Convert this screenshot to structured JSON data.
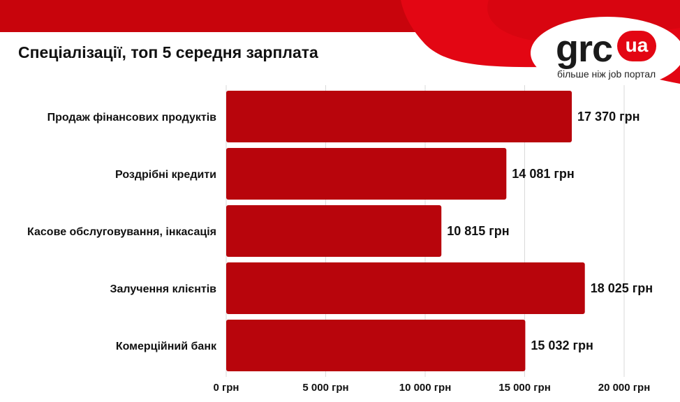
{
  "title": "Спеціалізації, топ 5 середня зарплата",
  "logo": {
    "word": "grc",
    "badge": "ua",
    "tagline": "більше ніж job портал"
  },
  "colors": {
    "bar": "#b8050c",
    "accent": "#e30613",
    "banner": "#c8040c",
    "grid": "#d9d9d9"
  },
  "chart_data": {
    "type": "bar",
    "orientation": "horizontal",
    "categories": [
      "Продаж фінансових продуктів",
      "Роздрібні кредити",
      "Касове обслуговування, інкасація",
      "Залучення клієнтів",
      "Комерційний банк"
    ],
    "values": [
      17370,
      14081,
      10815,
      18025,
      15032
    ],
    "value_labels": [
      "17 370 грн",
      "14 081 грн",
      "10 815 грн",
      "18 025 грн",
      "15 032 грн"
    ],
    "xlim": [
      0,
      20000
    ],
    "xticks": [
      0,
      5000,
      10000,
      15000,
      20000
    ],
    "xtick_labels": [
      "0 грн",
      "5 000 грн",
      "10 000 грн",
      "15 000 грн",
      "20 000 грн"
    ],
    "grid": true,
    "legend": false
  }
}
